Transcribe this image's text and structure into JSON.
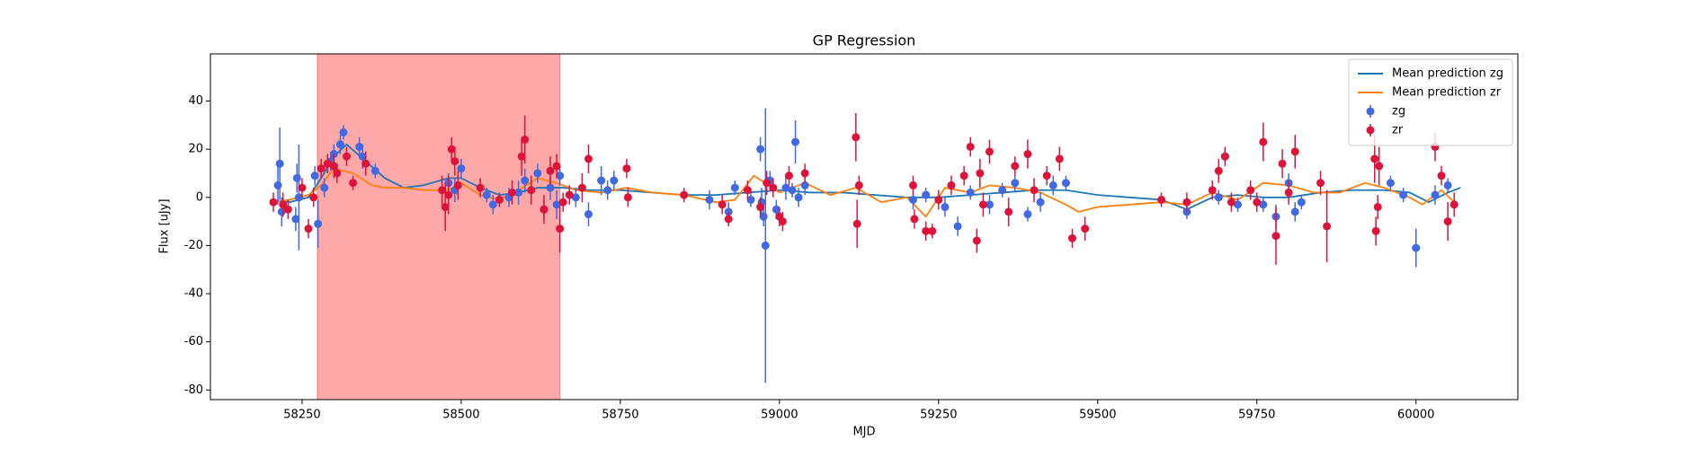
{
  "chart_data": {
    "type": "errorbar",
    "title": "GP Regression",
    "x_label": "MJD",
    "y_label": "Flux [uJy]",
    "xlim": [
      58106,
      60160
    ],
    "xticks": [
      58250,
      58500,
      58750,
      59000,
      59250,
      59500,
      59750,
      60000
    ],
    "ylim": [
      -84,
      59.6
    ],
    "yticks": [
      -80,
      -60,
      -40,
      -20,
      0,
      20,
      40
    ],
    "legend": "upper right",
    "span": {
      "x": [
        58274,
        58655
      ],
      "color": "#ff0000"
    },
    "series": [
      {
        "name": "Mean prediction zg",
        "kind": "line",
        "color": "#1f77b4",
        "x": [
          58200,
          58230,
          58260,
          58280,
          58300,
          58320,
          58350,
          58380,
          58410,
          58440,
          58480,
          58500,
          58530,
          58560,
          58590,
          58620,
          58660,
          58700,
          58750,
          58800,
          58850,
          58900,
          58950,
          59000,
          59050,
          59100,
          59150,
          59200,
          59250,
          59300,
          59350,
          59400,
          59450,
          59500,
          59550,
          59600,
          59640,
          59680,
          59720,
          59760,
          59800,
          59850,
          59900,
          59950,
          59990,
          60020,
          60050,
          60070
        ],
        "values": [
          -1,
          -2,
          0,
          8,
          17,
          22,
          15,
          8,
          4,
          5,
          8,
          8,
          4,
          1,
          2,
          4,
          4,
          3,
          3,
          2,
          1,
          1,
          2,
          3,
          2,
          2,
          1,
          0,
          0,
          1,
          2,
          3,
          3,
          1,
          0,
          -1,
          -5,
          0,
          1,
          0,
          0,
          2,
          3,
          3,
          2,
          -2,
          2,
          4
        ]
      },
      {
        "name": "Mean prediction zr",
        "kind": "line",
        "color": "#ff7f0e",
        "x": [
          58200,
          58230,
          58260,
          58280,
          58300,
          58330,
          58360,
          58380,
          58410,
          58440,
          58480,
          58500,
          58530,
          58560,
          58590,
          58620,
          58650,
          58680,
          58720,
          58760,
          58800,
          58850,
          58900,
          58930,
          58960,
          59000,
          59040,
          59080,
          59120,
          59160,
          59200,
          59230,
          59260,
          59300,
          59330,
          59370,
          59410,
          59450,
          59470,
          59500,
          59550,
          59600,
          59640,
          59680,
          59720,
          59760,
          59800,
          59840,
          59880,
          59920,
          59950,
          59990,
          60010,
          60040,
          60060
        ],
        "values": [
          -2,
          -1,
          1,
          5,
          12,
          10,
          5,
          4,
          4,
          3,
          3,
          6,
          1,
          -1,
          3,
          8,
          6,
          3,
          2,
          4,
          2,
          1,
          -2,
          -1,
          9,
          2,
          6,
          1,
          4,
          -2,
          0,
          -8,
          4,
          2,
          5,
          4,
          2,
          -3,
          -6,
          -4,
          -3,
          -2,
          -3,
          2,
          -1,
          6,
          5,
          2,
          2,
          6,
          4,
          0,
          -3,
          3,
          -2
        ]
      },
      {
        "name": "zg",
        "kind": "errorbar",
        "color": "#4169e1",
        "x": [
          58212,
          58215,
          58218,
          58240,
          58242,
          58245,
          58270,
          58275,
          58285,
          58295,
          58300,
          58310,
          58315,
          58340,
          58345,
          58365,
          58480,
          58490,
          58500,
          58540,
          58550,
          58575,
          58590,
          58600,
          58620,
          58630,
          58640,
          58650,
          58655,
          58680,
          58700,
          58720,
          58730,
          58740,
          58890,
          58920,
          58930,
          58955,
          58970,
          58972,
          58975,
          58978,
          58985,
          58995,
          59010,
          59020,
          59025,
          59030,
          59040,
          59210,
          59230,
          59260,
          59280,
          59300,
          59330,
          59350,
          59370,
          59390,
          59410,
          59430,
          59450,
          59640,
          59690,
          59700,
          59720,
          59760,
          59780,
          59800,
          59810,
          59820,
          59960,
          59980,
          60000,
          60030,
          60050
        ],
        "values": [
          5,
          14,
          -6,
          -9,
          8,
          0,
          9,
          -11,
          4,
          15,
          18,
          22,
          27,
          21,
          17,
          11,
          6,
          3,
          12,
          1,
          -3,
          0,
          2,
          7,
          10,
          -5,
          4,
          -3,
          9,
          0,
          -7,
          7,
          3,
          7,
          -1,
          -6,
          4,
          -1,
          20,
          -2,
          -8,
          -20,
          7,
          -5,
          4,
          3,
          23,
          0,
          5,
          -1,
          1,
          -4,
          -12,
          2,
          -3,
          3,
          6,
          -7,
          -2,
          5,
          6,
          -6,
          0,
          17,
          -3,
          -3,
          -8,
          6,
          -6,
          -2,
          6,
          1,
          -21,
          1,
          5
        ],
        "errors": [
          8,
          15,
          6,
          5,
          6,
          22,
          4,
          10,
          4,
          4,
          4,
          4,
          3,
          4,
          5,
          3,
          4,
          5,
          4,
          3,
          4,
          4,
          5,
          5,
          4,
          4,
          5,
          6,
          4,
          4,
          5,
          6,
          4,
          4,
          4,
          4,
          3,
          3,
          5,
          6,
          4,
          57,
          4,
          4,
          5,
          3,
          9,
          4,
          4,
          4,
          3,
          4,
          4,
          3,
          4,
          3,
          4,
          3,
          4,
          4,
          3,
          3,
          3,
          3,
          3,
          3,
          5,
          4,
          4,
          3,
          3,
          3,
          8,
          4,
          3
        ]
      },
      {
        "name": "zr",
        "kind": "errorbar",
        "color": "#dc143c",
        "x": [
          58205,
          58220,
          58228,
          58250,
          58260,
          58268,
          58280,
          58290,
          58300,
          58305,
          58320,
          58330,
          58350,
          58470,
          58475,
          58480,
          58485,
          58490,
          58495,
          58530,
          58560,
          58580,
          58595,
          58600,
          58610,
          58630,
          58640,
          58650,
          58655,
          58660,
          58670,
          58690,
          58700,
          58760,
          58762,
          58850,
          58910,
          58920,
          58950,
          58970,
          58980,
          58990,
          59000,
          59005,
          59015,
          59040,
          59120,
          59122,
          59125,
          59210,
          59212,
          59230,
          59240,
          59250,
          59270,
          59290,
          59300,
          59310,
          59315,
          59320,
          59330,
          59360,
          59370,
          59390,
          59400,
          59420,
          59440,
          59460,
          59480,
          59600,
          59640,
          59680,
          59690,
          59700,
          59710,
          59740,
          59750,
          59760,
          59780,
          59790,
          59800,
          59810,
          59850,
          59860,
          59935,
          59937,
          59940,
          59942,
          60030,
          60040,
          60050,
          60060
        ],
        "values": [
          -2,
          -3,
          -5,
          4,
          -13,
          0,
          12,
          14,
          13,
          10,
          17,
          6,
          14,
          3,
          -4,
          1,
          20,
          15,
          5,
          4,
          -1,
          2,
          17,
          24,
          3,
          -5,
          11,
          13,
          -13,
          -2,
          1,
          4,
          16,
          12,
          0,
          1,
          -3,
          -9,
          3,
          -4,
          6,
          4,
          -8,
          -10,
          9,
          10,
          25,
          -11,
          5,
          5,
          -9,
          -14,
          -14,
          -1,
          5,
          9,
          21,
          -18,
          10,
          -3,
          19,
          -6,
          13,
          18,
          3,
          9,
          16,
          -17,
          -13,
          -1,
          -2,
          3,
          11,
          17,
          -2,
          3,
          -2,
          23,
          -16,
          14,
          2,
          19,
          6,
          -12,
          16,
          -14,
          -4,
          13,
          21,
          9,
          -10,
          -3
        ],
        "errors": [
          4,
          5,
          4,
          4,
          4,
          4,
          4,
          4,
          5,
          4,
          4,
          3,
          5,
          6,
          10,
          8,
          5,
          6,
          6,
          4,
          3,
          5,
          8,
          10,
          6,
          6,
          6,
          5,
          10,
          4,
          4,
          6,
          6,
          4,
          4,
          3,
          4,
          3,
          4,
          4,
          5,
          4,
          4,
          4,
          4,
          4,
          10,
          10,
          4,
          4,
          4,
          4,
          3,
          4,
          4,
          4,
          4,
          5,
          6,
          5,
          5,
          6,
          4,
          6,
          5,
          4,
          5,
          4,
          5,
          3,
          4,
          4,
          5,
          4,
          4,
          4,
          4,
          8,
          12,
          6,
          5,
          7,
          5,
          15,
          10,
          6,
          5,
          8,
          6,
          4,
          8,
          5
        ]
      }
    ]
  }
}
